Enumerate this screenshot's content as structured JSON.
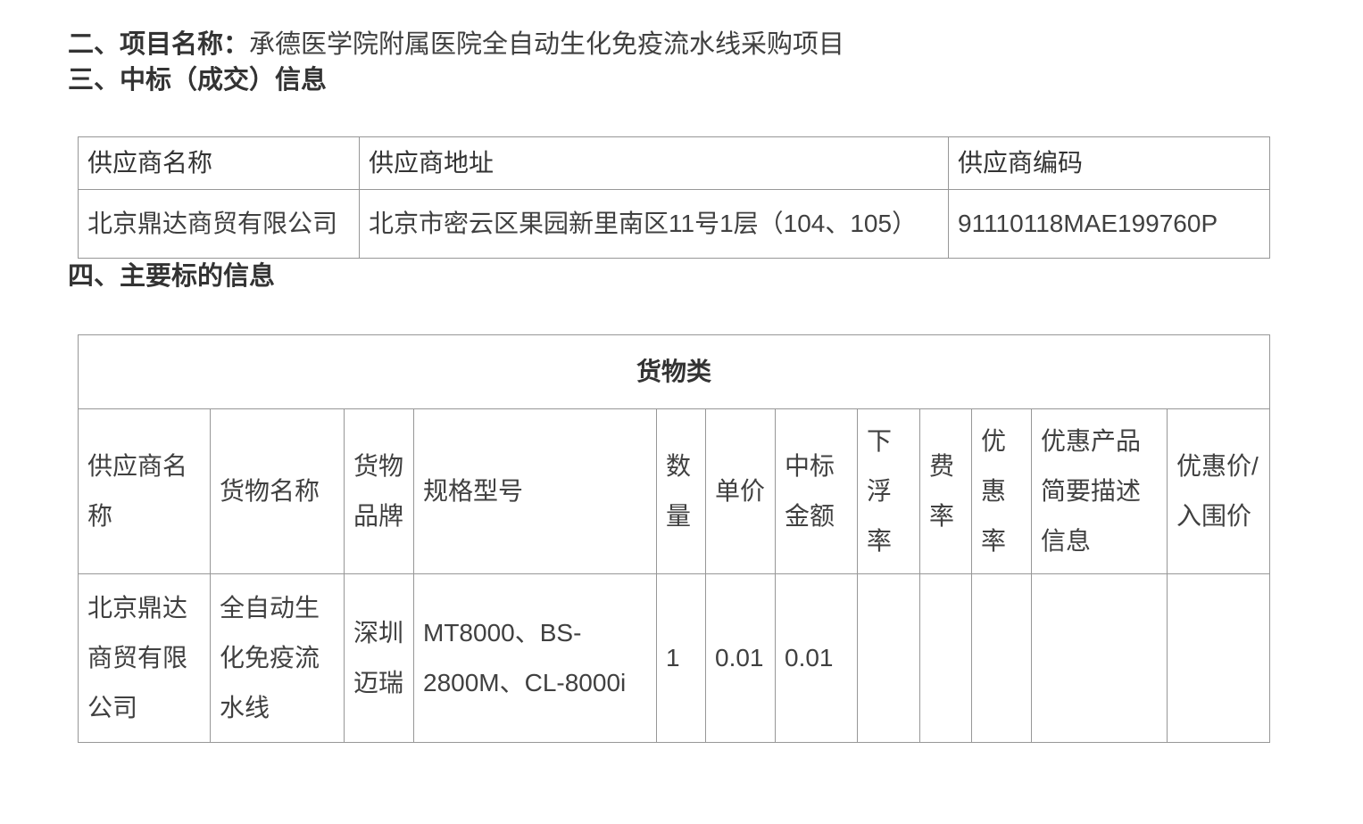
{
  "colors": {
    "background": "#ffffff",
    "heading_text": "#333333",
    "body_text": "#404040",
    "table_border": "#979797"
  },
  "sections": {
    "project": {
      "label": "二、项目名称：",
      "value": "承德医学院附属医院全自动生化免疫流水线采购项目"
    },
    "award_heading": "三、中标（成交）信息",
    "main_subject_heading": "四、主要标的信息"
  },
  "supplier_table": {
    "headers": [
      "供应商名称",
      "供应商地址",
      "供应商编码"
    ],
    "row": [
      "北京鼎达商贸有限公司",
      "北京市密云区果园新里南区11号1层（104、105）",
      "91110118MAE199760P"
    ]
  },
  "goods_table": {
    "category": "货物类",
    "headers": [
      "供应商名称",
      "货物名称",
      "货物品牌",
      "规格型号",
      "数量",
      "单价",
      "中标金额",
      "下浮率",
      "费率",
      "优惠率",
      "优惠产品简要描述信息",
      "优惠价/入围价"
    ],
    "row": [
      "北京鼎达商贸有限公司",
      "全自动生化免疫流水线",
      "深圳迈瑞",
      "MT8000、BS-2800M、CL-8000i",
      "1",
      "0.01",
      "0.01",
      "",
      "",
      "",
      "",
      ""
    ]
  }
}
